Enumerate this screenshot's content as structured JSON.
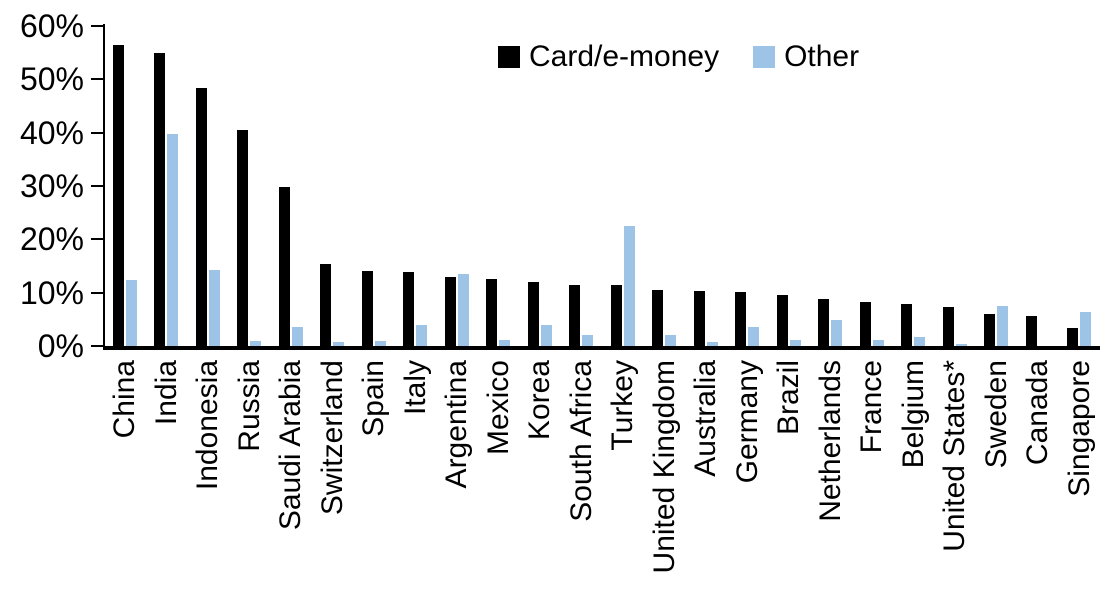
{
  "chart_data": {
    "type": "bar",
    "title": "",
    "xlabel": "",
    "ylabel": "",
    "ylim": [
      0,
      60
    ],
    "grid": false,
    "legend_position": "top-center",
    "y_ticks": [
      "0%",
      "10%",
      "20%",
      "30%",
      "40%",
      "50%",
      "60%"
    ],
    "y_tick_values": [
      0,
      10,
      20,
      30,
      40,
      50,
      60
    ],
    "categories": [
      "China",
      "India",
      "Indonesia",
      "Russia",
      "Saudi Arabia",
      "Switzerland",
      "Spain",
      "Italy",
      "Argentina",
      "Mexico",
      "Korea",
      "South Africa",
      "Turkey",
      "United Kingdom",
      "Australia",
      "Germany",
      "Brazil",
      "Netherlands",
      "France",
      "Belgium",
      "United States*",
      "Sweden",
      "Canada",
      "Singapore"
    ],
    "series": [
      {
        "name": "Card/e-money",
        "color": "#000000",
        "values": [
          56.5,
          55.0,
          48.4,
          40.6,
          29.9,
          15.4,
          14.0,
          13.9,
          13.0,
          12.5,
          12.1,
          11.5,
          11.4,
          10.6,
          10.4,
          10.1,
          9.5,
          8.8,
          8.3,
          7.8,
          7.4,
          6.1,
          5.6,
          3.4
        ]
      },
      {
        "name": "Other",
        "color": "#9DC3E6",
        "values": [
          12.4,
          39.8,
          14.3,
          1.0,
          3.6,
          0.8,
          1.0,
          4.0,
          13.5,
          1.2,
          4.0,
          2.0,
          22.5,
          2.1,
          0.8,
          3.6,
          1.1,
          4.8,
          1.2,
          1.7,
          0.3,
          7.6,
          0.0,
          6.3
        ]
      }
    ]
  }
}
